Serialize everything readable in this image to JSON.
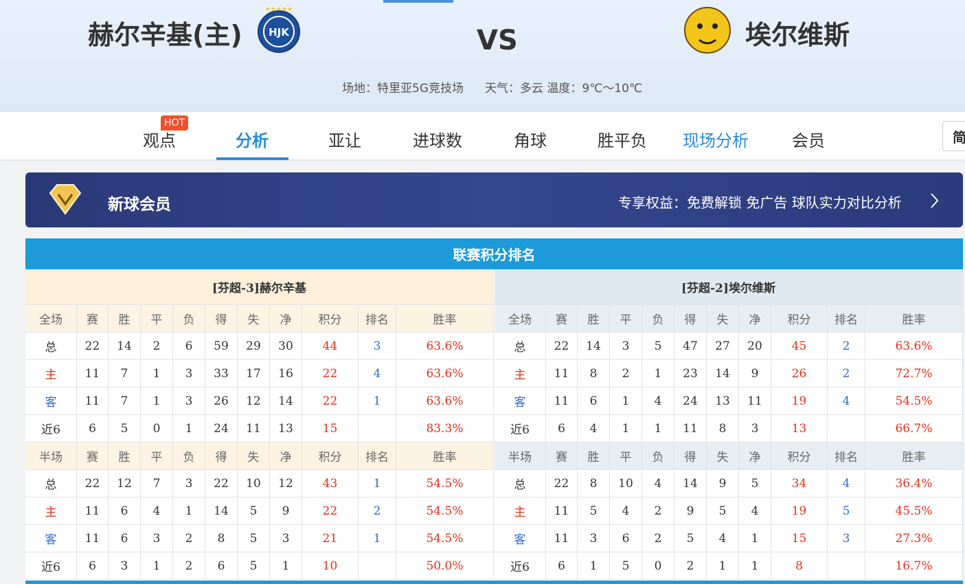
{
  "header": {
    "home_team": "赫尔辛基(主)",
    "vs": "VS",
    "away_team": "埃尔维斯",
    "venue": "场地：特里亚5G竞技场",
    "weather": "天气：多云 温度：9℃～10℃"
  },
  "nav": {
    "tabs": [
      "观点",
      "分析",
      "亚让",
      "进球数",
      "角球",
      "胜平负",
      "现场分析",
      "会员"
    ],
    "hot_badge": "HOT",
    "language": "简"
  },
  "banner": {
    "title": "新球会员",
    "benefits": "专享权益：免费解锁 免广告 球队实力对比分析"
  },
  "standings": {
    "title": "联赛积分排名",
    "home": {
      "title": "[芬超-3]赫尔辛基",
      "full_header": [
        "全场",
        "赛",
        "胜",
        "平",
        "负",
        "得",
        "失",
        "净",
        "积分",
        "排名",
        "胜率"
      ],
      "full_rows": [
        [
          "总",
          22,
          14,
          2,
          6,
          59,
          29,
          30,
          44,
          3,
          "63.6%"
        ],
        [
          "主",
          11,
          7,
          1,
          3,
          33,
          17,
          16,
          22,
          4,
          "63.6%"
        ],
        [
          "客",
          11,
          7,
          1,
          3,
          26,
          12,
          14,
          22,
          1,
          "63.6%"
        ],
        [
          "近6",
          6,
          5,
          0,
          1,
          24,
          11,
          13,
          15,
          null,
          "83.3%"
        ]
      ],
      "half_header": [
        "半场",
        "赛",
        "胜",
        "平",
        "负",
        "得",
        "失",
        "净",
        "积分",
        "排名",
        "胜率"
      ],
      "half_rows": [
        [
          "总",
          22,
          12,
          7,
          3,
          22,
          10,
          12,
          43,
          1,
          "54.5%"
        ],
        [
          "主",
          11,
          6,
          4,
          1,
          14,
          5,
          9,
          22,
          2,
          "54.5%"
        ],
        [
          "客",
          11,
          6,
          3,
          2,
          8,
          5,
          3,
          21,
          1,
          "54.5%"
        ],
        [
          "近6",
          6,
          3,
          1,
          2,
          6,
          5,
          1,
          10,
          null,
          "50.0%"
        ]
      ]
    },
    "away": {
      "title": "[芬超-2]埃尔维斯",
      "full_header": [
        "全场",
        "赛",
        "胜",
        "平",
        "负",
        "得",
        "失",
        "净",
        "积分",
        "排名",
        "胜率"
      ],
      "full_rows": [
        [
          "总",
          22,
          14,
          3,
          5,
          47,
          27,
          20,
          45,
          2,
          "63.6%"
        ],
        [
          "主",
          11,
          8,
          2,
          1,
          23,
          14,
          9,
          26,
          2,
          "72.7%"
        ],
        [
          "客",
          11,
          6,
          1,
          4,
          24,
          13,
          11,
          19,
          4,
          "54.5%"
        ],
        [
          "近6",
          6,
          4,
          1,
          1,
          11,
          8,
          3,
          13,
          null,
          "66.7%"
        ]
      ],
      "half_header": [
        "半场",
        "赛",
        "胜",
        "平",
        "负",
        "得",
        "失",
        "净",
        "积分",
        "排名",
        "胜率"
      ],
      "half_rows": [
        [
          "总",
          22,
          8,
          10,
          4,
          14,
          9,
          5,
          34,
          4,
          "36.4%"
        ],
        [
          "主",
          11,
          5,
          4,
          2,
          9,
          5,
          4,
          19,
          5,
          "45.5%"
        ],
        [
          "客",
          11,
          3,
          6,
          2,
          5,
          4,
          1,
          15,
          3,
          "27.3%"
        ],
        [
          "近6",
          6,
          1,
          5,
          0,
          2,
          1,
          1,
          8,
          null,
          "16.7%"
        ]
      ]
    }
  }
}
